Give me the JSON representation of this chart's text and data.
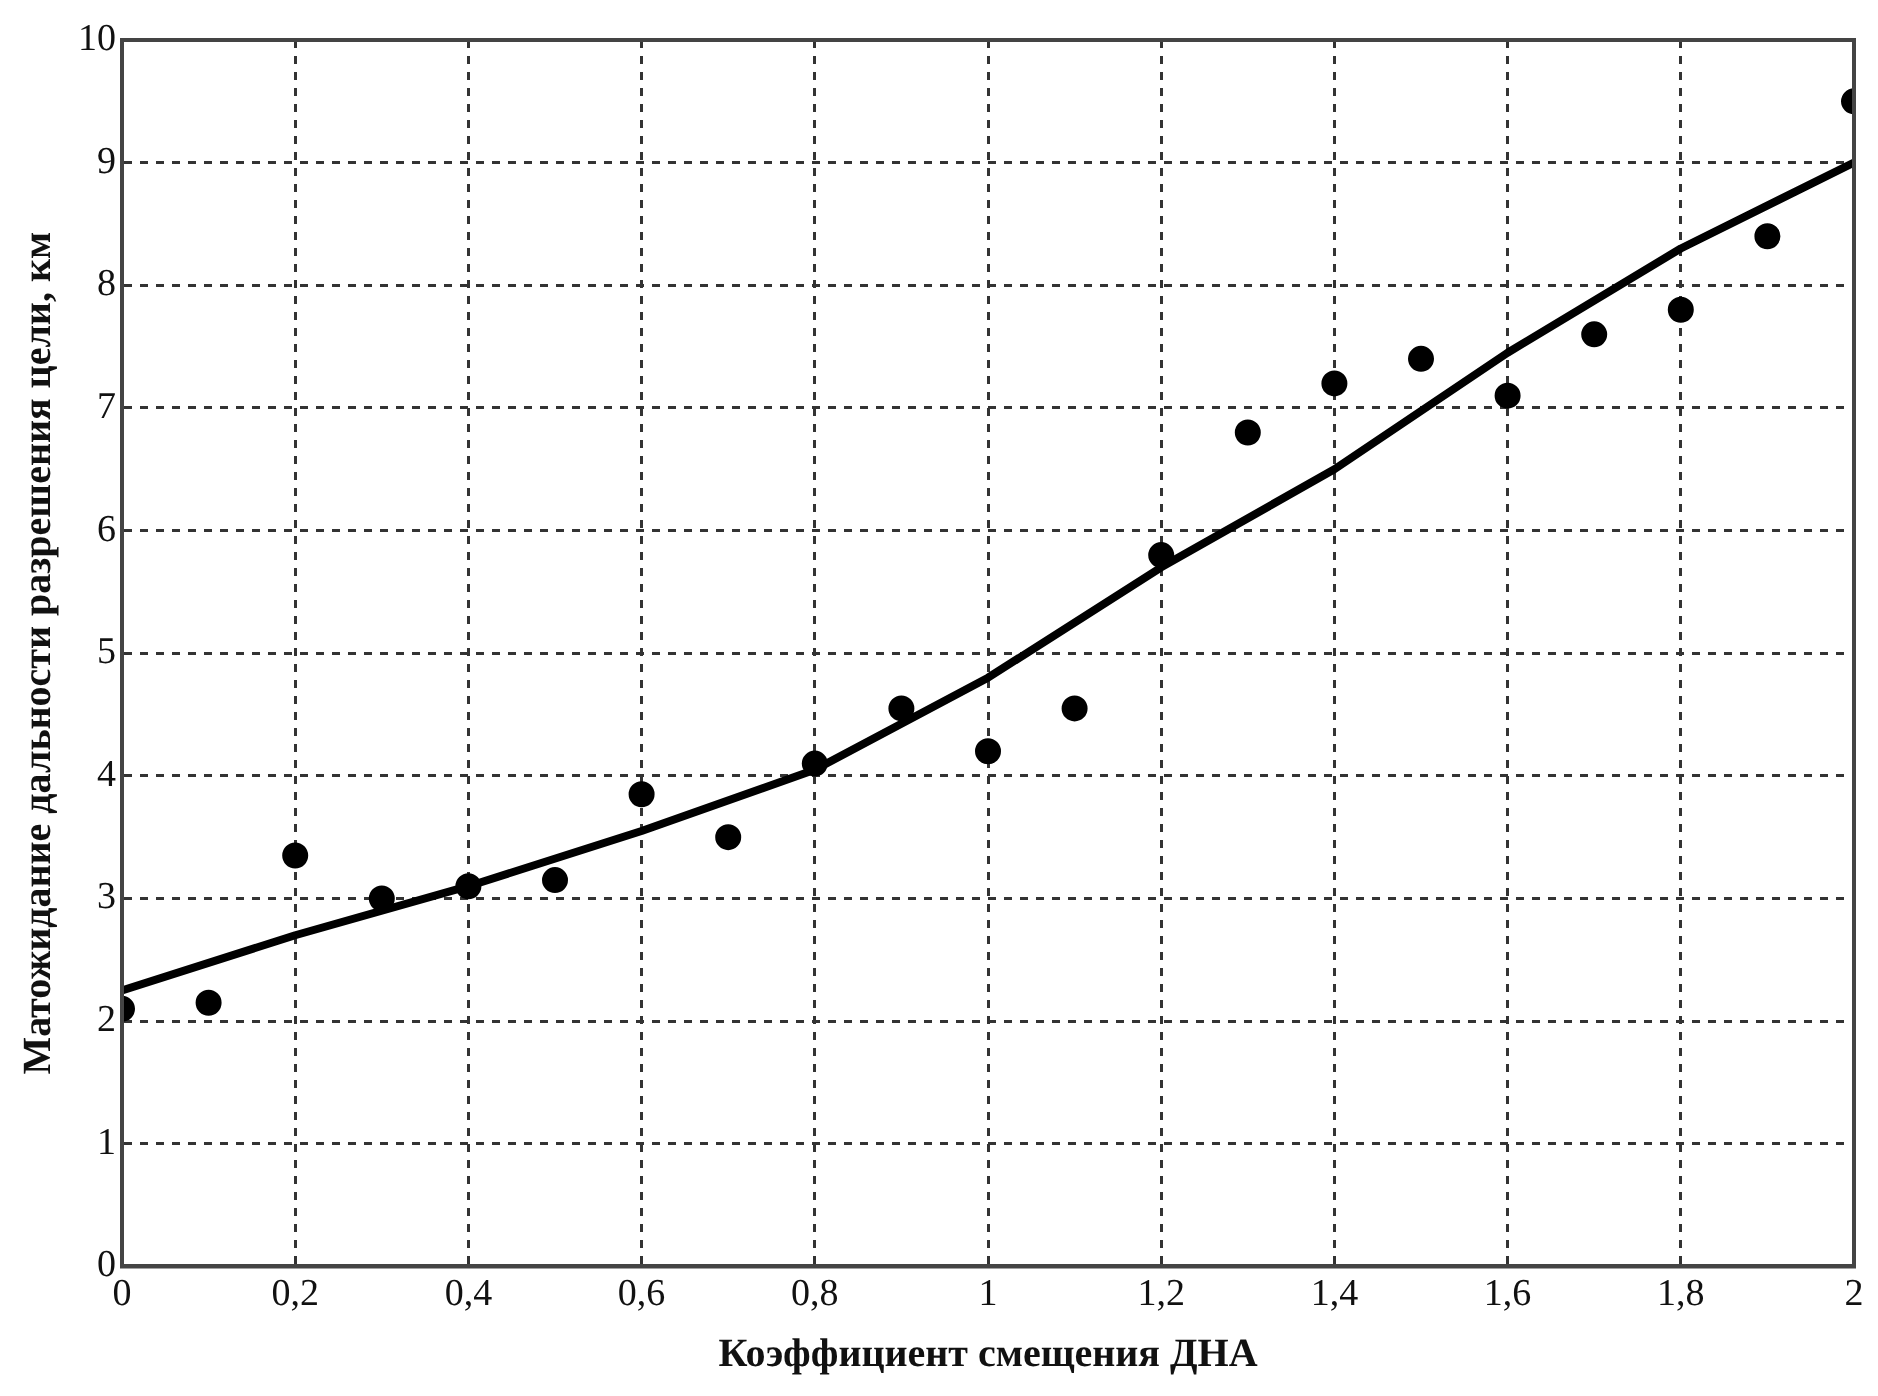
{
  "chart_data": {
    "type": "scatter",
    "xlabel": "Коэффициент смещения ДНА",
    "ylabel": "Матожидание дальности разрешения цели, км",
    "xlim": [
      0,
      2
    ],
    "ylim": [
      0,
      10
    ],
    "xticks": [
      0,
      {
        "value": 0.2,
        "label": "0,2"
      },
      {
        "value": 0.4,
        "label": "0,4"
      },
      {
        "value": 0.6,
        "label": "0,6"
      },
      {
        "value": 0.8,
        "label": "0,8"
      },
      1,
      {
        "value": 1.2,
        "label": "1,2"
      },
      {
        "value": 1.4,
        "label": "1,4"
      },
      {
        "value": 1.6,
        "label": "1,6"
      },
      {
        "value": 1.8,
        "label": "1,8"
      },
      2
    ],
    "yticks": [
      0,
      1,
      2,
      3,
      4,
      5,
      6,
      7,
      8,
      9,
      10
    ],
    "grid": true,
    "legend": false,
    "series": [
      {
        "type": "scatter",
        "color": "#000000",
        "marker": "circle",
        "x": [
          0,
          0.1,
          0.2,
          0.3,
          0.4,
          0.5,
          0.6,
          0.7,
          0.8,
          0.9,
          1.0,
          1.1,
          1.2,
          1.3,
          1.4,
          1.5,
          1.6,
          1.7,
          1.8,
          1.9,
          2.0
        ],
        "values": [
          2.1,
          2.15,
          3.35,
          3.0,
          3.1,
          3.15,
          3.85,
          3.5,
          4.1,
          4.55,
          4.2,
          4.55,
          5.8,
          6.8,
          7.2,
          7.4,
          7.1,
          7.6,
          7.8,
          8.4,
          9.5
        ]
      },
      {
        "type": "line",
        "color": "#000000",
        "marker": "none",
        "line_style": "solid",
        "x": [
          0,
          0.2,
          0.4,
          0.6,
          0.8,
          1.0,
          1.2,
          1.4,
          1.6,
          1.8,
          2.0
        ],
        "values": [
          2.25,
          2.7,
          3.1,
          3.55,
          4.05,
          4.8,
          5.7,
          6.5,
          7.45,
          8.3,
          9.0
        ]
      }
    ]
  }
}
